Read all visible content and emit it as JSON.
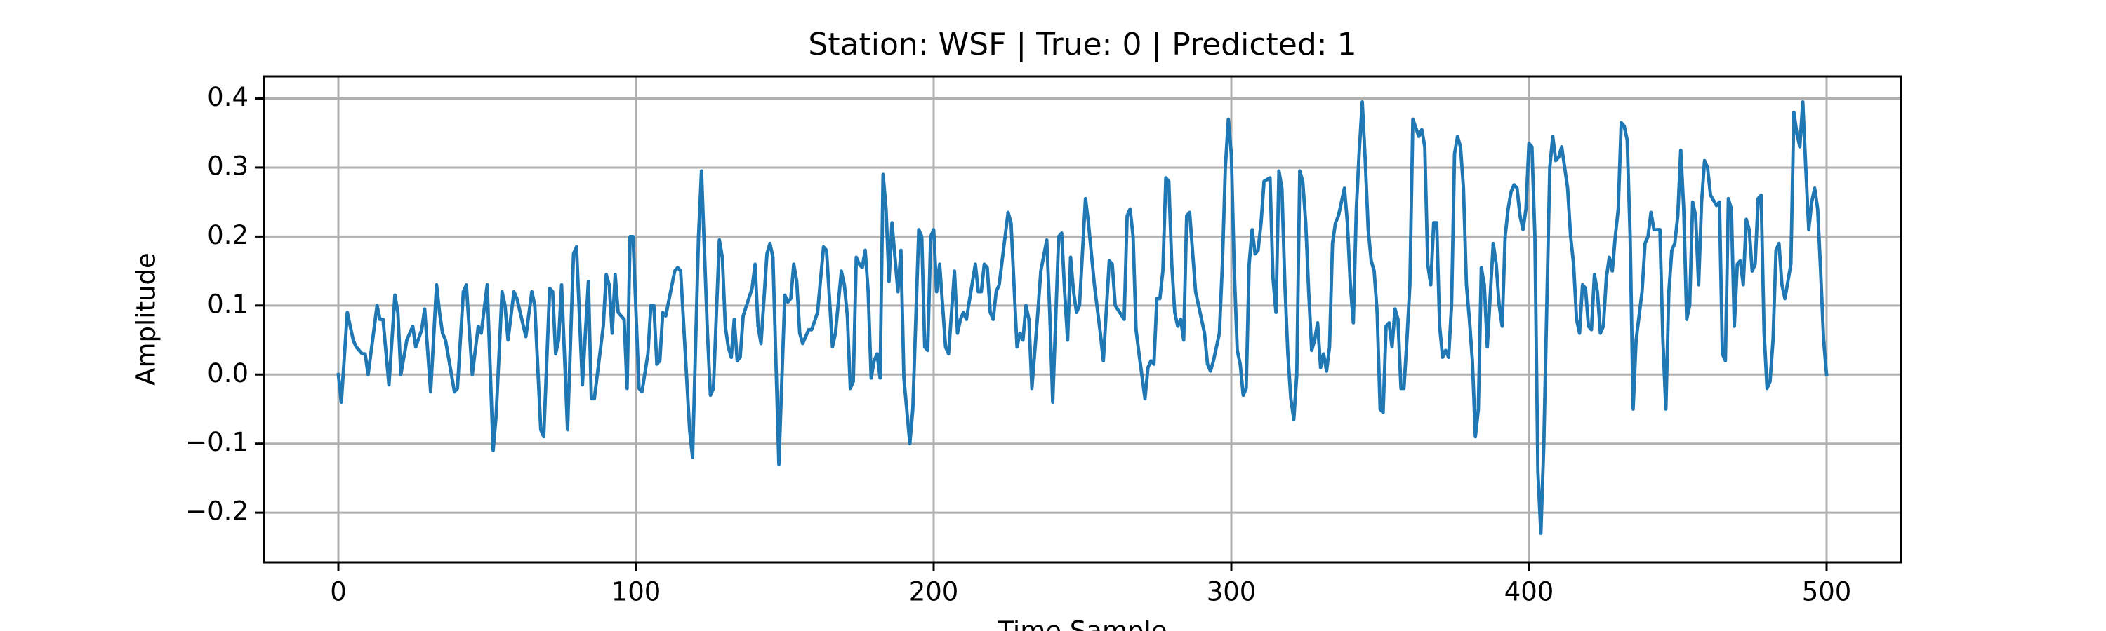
{
  "chart_data": {
    "type": "line",
    "title": "Station: WSF | True: 0 | Predicted: 1",
    "x_label": "Time Sample",
    "y_label": "Amplitude",
    "color": "#1f77b4",
    "grid": true,
    "xlim": [
      -25,
      525
    ],
    "ylim": [
      -0.272,
      0.432
    ],
    "xticks": [
      0,
      100,
      200,
      300,
      400,
      500
    ],
    "yticks": [
      {
        "value": -0.2,
        "label": "−0.2"
      },
      {
        "value": -0.1,
        "label": "−0.1"
      },
      {
        "value": 0.0,
        "label": "0.0"
      },
      0.1,
      0.2,
      0.3,
      0.4
    ],
    "x": [
      0,
      1,
      3,
      5,
      6,
      8,
      9,
      10,
      13,
      14,
      15,
      17,
      19,
      20,
      21,
      23,
      25,
      26,
      28,
      29,
      31,
      33,
      34,
      35,
      36,
      39,
      40,
      42,
      43,
      45,
      47,
      48,
      50,
      52,
      53,
      55,
      56,
      57,
      59,
      60,
      63,
      65,
      66,
      68,
      69,
      71,
      72,
      73,
      74,
      75,
      77,
      79,
      80,
      82,
      84,
      85,
      86,
      89,
      90,
      91,
      92,
      93,
      94,
      96,
      97,
      98,
      99,
      101,
      102,
      104,
      105,
      106,
      107,
      108,
      109,
      110,
      113,
      114,
      115,
      118,
      119,
      121,
      122,
      124,
      125,
      126,
      128,
      129,
      130,
      131,
      132,
      133,
      134,
      135,
      136,
      139,
      140,
      141,
      142,
      144,
      145,
      146,
      148,
      150,
      151,
      152,
      153,
      154,
      155,
      156,
      158,
      159,
      161,
      163,
      164,
      166,
      167,
      169,
      170,
      171,
      172,
      173,
      174,
      175,
      176,
      177,
      178,
      179,
      180,
      181,
      182,
      183,
      184,
      185,
      186,
      188,
      189,
      190,
      192,
      193,
      195,
      196,
      197,
      198,
      199,
      200,
      201,
      202,
      204,
      205,
      207,
      208,
      209,
      210,
      211,
      214,
      215,
      216,
      217,
      218,
      219,
      220,
      221,
      222,
      224,
      225,
      226,
      228,
      229,
      230,
      231,
      232,
      233,
      235,
      236,
      238,
      239,
      240,
      242,
      243,
      244,
      245,
      246,
      247,
      248,
      249,
      251,
      252,
      254,
      256,
      257,
      259,
      260,
      261,
      264,
      265,
      266,
      267,
      268,
      269,
      271,
      272,
      273,
      274,
      275,
      276,
      277,
      278,
      279,
      280,
      281,
      282,
      283,
      284,
      285,
      286,
      288,
      289,
      291,
      292,
      293,
      294,
      296,
      297,
      298,
      299,
      300,
      301,
      302,
      303,
      304,
      305,
      306,
      307,
      308,
      309,
      310,
      311,
      313,
      314,
      315,
      316,
      317,
      318,
      319,
      320,
      321,
      322,
      323,
      324,
      325,
      326,
      327,
      328,
      329,
      330,
      331,
      332,
      333,
      334,
      335,
      336,
      338,
      339,
      340,
      341,
      342,
      343,
      344,
      345,
      346,
      347,
      348,
      349,
      350,
      351,
      352,
      353,
      354,
      355,
      356,
      357,
      358,
      359,
      360,
      361,
      363,
      364,
      365,
      366,
      367,
      368,
      369,
      370,
      371,
      372,
      373,
      374,
      375,
      376,
      377,
      378,
      379,
      380,
      381,
      382,
      383,
      384,
      385,
      386,
      388,
      389,
      390,
      391,
      392,
      393,
      394,
      395,
      396,
      397,
      398,
      399,
      400,
      401,
      402,
      403,
      404,
      405,
      406,
      407,
      408,
      409,
      410,
      411,
      413,
      414,
      415,
      416,
      417,
      418,
      419,
      420,
      421,
      422,
      423,
      424,
      425,
      426,
      427,
      428,
      429,
      430,
      431,
      432,
      433,
      434,
      435,
      436,
      438,
      439,
      440,
      441,
      442,
      443,
      444,
      445,
      446,
      447,
      448,
      449,
      450,
      451,
      452,
      453,
      454,
      455,
      456,
      457,
      458,
      459,
      460,
      461,
      463,
      464,
      465,
      466,
      467,
      468,
      469,
      470,
      471,
      472,
      473,
      474,
      475,
      476,
      477,
      478,
      479,
      480,
      481,
      482,
      483,
      484,
      485,
      486,
      488,
      489,
      490,
      491,
      492,
      493,
      494,
      495,
      496,
      497,
      498,
      499,
      500
    ],
    "values": [
      0.0,
      -0.04,
      0.09,
      0.05,
      0.04,
      0.03,
      0.03,
      0.0,
      0.1,
      0.08,
      0.08,
      -0.015,
      0.115,
      0.09,
      0.0,
      0.05,
      0.07,
      0.04,
      0.065,
      0.095,
      -0.025,
      0.13,
      0.09,
      0.06,
      0.05,
      -0.025,
      -0.02,
      0.12,
      0.13,
      0.0,
      0.07,
      0.06,
      0.13,
      -0.11,
      -0.06,
      0.12,
      0.1,
      0.05,
      0.12,
      0.11,
      0.055,
      0.12,
      0.1,
      -0.08,
      -0.09,
      0.125,
      0.12,
      0.03,
      0.05,
      0.13,
      -0.08,
      0.175,
      0.185,
      -0.015,
      0.135,
      -0.035,
      -0.035,
      0.07,
      0.145,
      0.13,
      0.06,
      0.145,
      0.09,
      0.08,
      -0.02,
      0.2,
      0.2,
      -0.02,
      -0.025,
      0.03,
      0.1,
      0.1,
      0.015,
      0.02,
      0.09,
      0.085,
      0.15,
      0.155,
      0.15,
      -0.08,
      -0.12,
      0.2,
      0.295,
      0.06,
      -0.03,
      -0.02,
      0.195,
      0.17,
      0.07,
      0.04,
      0.025,
      0.08,
      0.02,
      0.025,
      0.085,
      0.125,
      0.16,
      0.07,
      0.045,
      0.175,
      0.19,
      0.17,
      -0.13,
      0.115,
      0.105,
      0.11,
      0.16,
      0.135,
      0.06,
      0.045,
      0.065,
      0.065,
      0.09,
      0.185,
      0.18,
      0.04,
      0.06,
      0.15,
      0.13,
      0.085,
      -0.02,
      -0.01,
      0.17,
      0.16,
      0.155,
      0.18,
      0.12,
      -0.005,
      0.02,
      0.03,
      -0.005,
      0.29,
      0.24,
      0.135,
      0.22,
      0.12,
      0.18,
      -0.005,
      -0.1,
      -0.05,
      0.21,
      0.2,
      0.04,
      0.035,
      0.2,
      0.21,
      0.12,
      0.16,
      0.04,
      0.03,
      0.15,
      0.06,
      0.08,
      0.09,
      0.08,
      0.16,
      0.12,
      0.12,
      0.16,
      0.155,
      0.09,
      0.08,
      0.12,
      0.13,
      0.2,
      0.235,
      0.22,
      0.04,
      0.06,
      0.05,
      0.1,
      0.08,
      -0.02,
      0.09,
      0.15,
      0.195,
      0.09,
      -0.04,
      0.2,
      0.205,
      0.12,
      0.05,
      0.17,
      0.12,
      0.09,
      0.1,
      0.255,
      0.22,
      0.13,
      0.06,
      0.02,
      0.165,
      0.16,
      0.1,
      0.08,
      0.23,
      0.24,
      0.2,
      0.065,
      0.03,
      -0.035,
      0.01,
      0.02,
      0.015,
      0.11,
      0.11,
      0.15,
      0.285,
      0.28,
      0.16,
      0.09,
      0.07,
      0.08,
      0.05,
      0.23,
      0.235,
      0.12,
      0.1,
      0.06,
      0.015,
      0.005,
      0.02,
      0.06,
      0.16,
      0.3,
      0.37,
      0.32,
      0.15,
      0.035,
      0.015,
      -0.03,
      -0.02,
      0.16,
      0.21,
      0.175,
      0.18,
      0.22,
      0.28,
      0.285,
      0.14,
      0.09,
      0.295,
      0.27,
      0.13,
      0.03,
      -0.035,
      -0.065,
      0.0,
      0.295,
      0.28,
      0.22,
      0.12,
      0.035,
      0.05,
      0.075,
      0.01,
      0.03,
      0.005,
      0.04,
      0.19,
      0.22,
      0.23,
      0.27,
      0.22,
      0.13,
      0.075,
      0.24,
      0.325,
      0.395,
      0.31,
      0.21,
      0.165,
      0.15,
      0.09,
      -0.05,
      -0.055,
      0.07,
      0.075,
      0.04,
      0.095,
      0.08,
      -0.02,
      -0.02,
      0.05,
      0.13,
      0.37,
      0.345,
      0.355,
      0.33,
      0.16,
      0.13,
      0.22,
      0.22,
      0.07,
      0.025,
      0.035,
      0.025,
      0.1,
      0.32,
      0.345,
      0.33,
      0.27,
      0.13,
      0.08,
      0.02,
      -0.09,
      -0.05,
      0.155,
      0.13,
      0.04,
      0.19,
      0.16,
      0.1,
      0.07,
      0.2,
      0.24,
      0.265,
      0.275,
      0.27,
      0.23,
      0.21,
      0.24,
      0.335,
      0.33,
      0.2,
      -0.14,
      -0.23,
      -0.1,
      0.1,
      0.3,
      0.345,
      0.31,
      0.315,
      0.33,
      0.27,
      0.2,
      0.16,
      0.08,
      0.06,
      0.13,
      0.125,
      0.07,
      0.065,
      0.145,
      0.12,
      0.06,
      0.07,
      0.14,
      0.17,
      0.15,
      0.2,
      0.24,
      0.365,
      0.36,
      0.34,
      0.2,
      -0.05,
      0.05,
      0.12,
      0.19,
      0.2,
      0.235,
      0.21,
      0.21,
      0.21,
      0.05,
      -0.05,
      0.12,
      0.18,
      0.19,
      0.23,
      0.325,
      0.24,
      0.08,
      0.1,
      0.25,
      0.23,
      0.13,
      0.25,
      0.31,
      0.3,
      0.26,
      0.245,
      0.25,
      0.03,
      0.02,
      0.255,
      0.24,
      0.07,
      0.16,
      0.165,
      0.13,
      0.225,
      0.21,
      0.15,
      0.16,
      0.255,
      0.26,
      0.06,
      -0.02,
      -0.01,
      0.05,
      0.18,
      0.19,
      0.13,
      0.11,
      0.16,
      0.38,
      0.35,
      0.33,
      0.395,
      0.3,
      0.21,
      0.25,
      0.27,
      0.24,
      0.15,
      0.05,
      0.0
    ]
  }
}
